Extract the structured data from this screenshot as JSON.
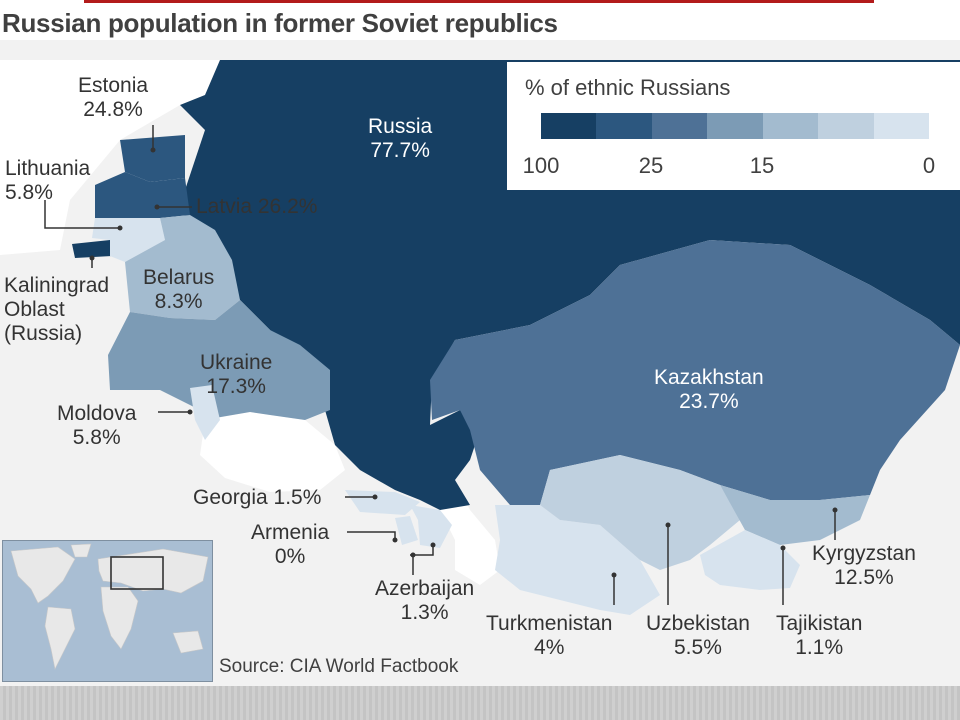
{
  "title": "Russian population in former Soviet republics",
  "legend": {
    "title": "% of ethnic Russians",
    "ticks": [
      "100",
      "25",
      "15",
      "0"
    ],
    "swatch_colors": [
      "#163f63",
      "#2c577f",
      "#4e7196",
      "#7c9bb5",
      "#a3bbcf",
      "#bfd0df",
      "#d7e3ee"
    ]
  },
  "source": "Source: CIA World Factbook",
  "colors": {
    "russia": "#163f63",
    "kazakhstan": "#4e7196",
    "ukraine": "#7c9bb5",
    "belarus": "#a3bbcf",
    "kyrgyzstan": "#a3bbcf",
    "baltic_high": "#2c577f",
    "low": "#d7e3ee",
    "non_soviet_land": "#f2f2f2",
    "sea": "#ffffff"
  },
  "regions": {
    "russia": {
      "name": "Russia",
      "value": "77.7%"
    },
    "estonia": {
      "name": "Estonia",
      "value": "24.8%"
    },
    "latvia": {
      "label": "Latvia 26.2%"
    },
    "lithuania": {
      "name": "Lithuania",
      "value": "5.8%"
    },
    "kaliningrad": {
      "line1": "Kaliningrad",
      "line2": "Oblast",
      "line3": "(Russia)"
    },
    "belarus": {
      "name": "Belarus",
      "value": "8.3%"
    },
    "ukraine": {
      "name": "Ukraine",
      "value": "17.3%"
    },
    "moldova": {
      "name": "Moldova",
      "value": "5.8%"
    },
    "georgia": {
      "label": "Georgia 1.5%"
    },
    "armenia": {
      "name": "Armenia",
      "value": "0%"
    },
    "azerbaijan": {
      "name": "Azerbaijan",
      "value": "1.3%"
    },
    "kazakhstan": {
      "name": "Kazakhstan",
      "value": "23.7%"
    },
    "turkmenistan": {
      "name": "Turkmenistan",
      "value": "4%"
    },
    "uzbekistan": {
      "name": "Uzbekistan",
      "value": "5.5%"
    },
    "tajikistan": {
      "name": "Tajikistan",
      "value": "1.1%"
    },
    "kyrgyzstan": {
      "name": "Kyrgyzstan",
      "value": "12.5%"
    }
  }
}
